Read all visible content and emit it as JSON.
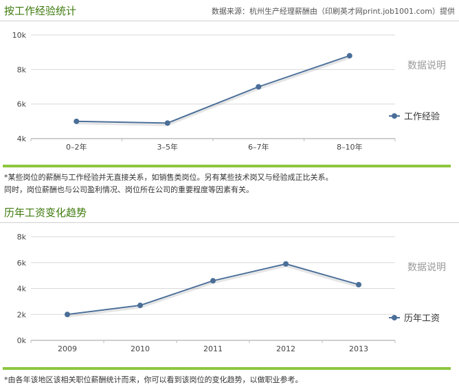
{
  "colors": {
    "title": "#3d7a0c",
    "series": "#4a6e98",
    "accent_bar": "#8dc63f",
    "grid": "#d8d8d8",
    "axis_text": "#444444",
    "side_label": "#9a9a9a"
  },
  "section1": {
    "title": "按工作经验统计",
    "source": "数据来源：杭州生产经理薪酬由（印刷英才网print.job1001.com）提供",
    "notes": [
      "*某些岗位的薪酬与工作经验并无直接关系，如销售类岗位。另有某些技术岗又与经验成正比关系。",
      "同时，岗位薪酬也与公司盈利情况、岗位所在公司的重要程度等因素有关。"
    ]
  },
  "section2": {
    "title": "历年工资变化趋势",
    "notes": [
      "*由各年该地区该相关职位薪酬统计而来，你可以看到该岗位的变化趋势，以做职业参考。"
    ]
  },
  "chart_data": [
    {
      "type": "line",
      "title": "",
      "categories": [
        "0–2年",
        "3–5年",
        "6–7年",
        "8–10年"
      ],
      "series": [
        {
          "name": "工作经验",
          "values": [
            5000,
            4900,
            7000,
            8800
          ]
        }
      ],
      "ylim": [
        4000,
        10000
      ],
      "yticks": [
        4000,
        6000,
        8000,
        10000
      ],
      "ytick_labels": [
        "4k",
        "6k",
        "8k",
        "10k"
      ],
      "side_label": "数据说明",
      "grid": true,
      "legend": "right"
    },
    {
      "type": "line",
      "title": "",
      "categories": [
        "2009",
        "2010",
        "2011",
        "2012",
        "2013"
      ],
      "series": [
        {
          "name": "历年工资",
          "values": [
            2000,
            2700,
            4600,
            5900,
            4300
          ]
        }
      ],
      "ylim": [
        0,
        8000
      ],
      "yticks": [
        0,
        2000,
        4000,
        6000,
        8000
      ],
      "ytick_labels": [
        "0k",
        "2k",
        "4k",
        "6k",
        "8k"
      ],
      "side_label": "数据说明",
      "grid": true,
      "legend": "right"
    }
  ]
}
